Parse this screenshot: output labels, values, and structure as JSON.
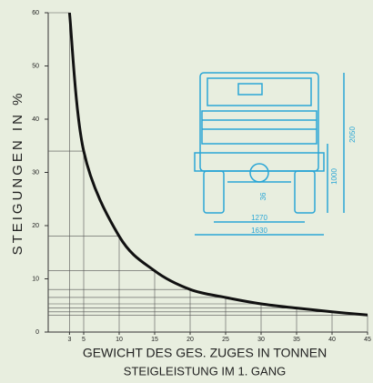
{
  "chart_data": {
    "type": "line",
    "y_label": "STEIGUNGEN IN %",
    "x_label": "GEWICHT DES GES. ZUGES IN TONNEN",
    "subtitle": "STEIGLEISTUNG IM 1. GANG",
    "x": [
      3,
      5,
      10,
      15,
      20,
      25,
      30,
      35,
      40,
      45
    ],
    "values": [
      60,
      34,
      18,
      11.5,
      8,
      6.5,
      5.3,
      4.5,
      3.8,
      3.2
    ],
    "color": "#111111",
    "xlim": [
      0,
      45
    ],
    "ylim": [
      0,
      60
    ],
    "xticks": [
      3,
      5,
      10,
      15,
      20,
      25,
      30,
      35,
      40,
      45
    ],
    "yticks": [
      0,
      10,
      20,
      30,
      40,
      50,
      60
    ],
    "annotations": [
      "2050",
      "1000",
      "1270",
      "1630",
      "36"
    ]
  }
}
